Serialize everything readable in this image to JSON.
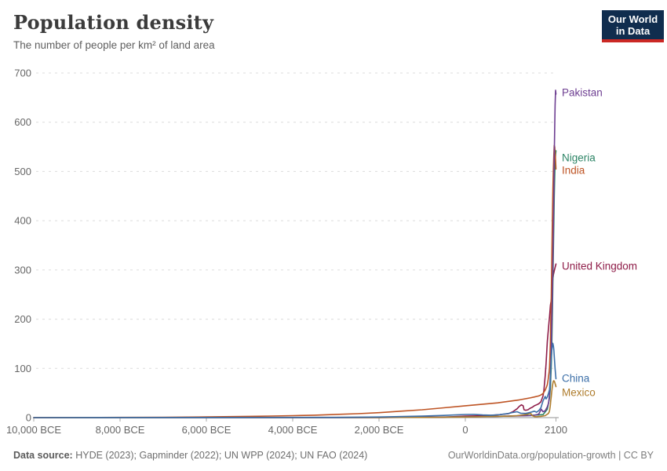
{
  "header": {
    "title": "Population density",
    "subtitle": "The number of people per km² of land area"
  },
  "logo": {
    "line1": "Our World",
    "line2": "in Data",
    "bg_color": "#102D4E",
    "accent_color": "#CB2824"
  },
  "chart_data": {
    "type": "line",
    "title": "Population density",
    "xlabel": "",
    "ylabel": "",
    "xlim": [
      -10000,
      2100
    ],
    "ylim": [
      0,
      700
    ],
    "grid": "dashed-horizontal",
    "legend_position": "labels-at-line-end",
    "yticks": [
      0,
      100,
      200,
      300,
      400,
      500,
      600,
      700
    ],
    "xticks": [
      {
        "year": -10000,
        "label": "10,000 BCE"
      },
      {
        "year": -8000,
        "label": "8,000 BCE"
      },
      {
        "year": -6000,
        "label": "6,000 BCE"
      },
      {
        "year": -4000,
        "label": "4,000 BCE"
      },
      {
        "year": -2000,
        "label": "2,000 BCE"
      },
      {
        "year": 0,
        "label": "0"
      },
      {
        "year": 2100,
        "label": "2100"
      }
    ],
    "series": [
      {
        "name": "United Kingdom",
        "color": "#8E1C48",
        "label_y": 339,
        "points": [
          [
            -10000,
            0.02
          ],
          [
            -2000,
            0.2
          ],
          [
            -500,
            1
          ],
          [
            0,
            3
          ],
          [
            500,
            4
          ],
          [
            800,
            6
          ],
          [
            1000,
            8
          ],
          [
            1100,
            12
          ],
          [
            1200,
            18
          ],
          [
            1250,
            23
          ],
          [
            1300,
            26
          ],
          [
            1340,
            24
          ],
          [
            1360,
            16
          ],
          [
            1400,
            15
          ],
          [
            1450,
            16
          ],
          [
            1500,
            19
          ],
          [
            1550,
            21
          ],
          [
            1600,
            24
          ],
          [
            1650,
            26
          ],
          [
            1700,
            28
          ],
          [
            1750,
            32
          ],
          [
            1800,
            44
          ],
          [
            1820,
            55
          ],
          [
            1850,
            85
          ],
          [
            1870,
            110
          ],
          [
            1900,
            155
          ],
          [
            1920,
            175
          ],
          [
            1940,
            195
          ],
          [
            1950,
            205
          ],
          [
            1970,
            228
          ],
          [
            1990,
            238
          ],
          [
            2000,
            244
          ],
          [
            2010,
            258
          ],
          [
            2020,
            276
          ],
          [
            2040,
            290
          ],
          [
            2060,
            298
          ],
          [
            2080,
            305
          ],
          [
            2100,
            312
          ]
        ]
      },
      {
        "name": "Nigeria",
        "color": "#2C8465",
        "label_y": 201,
        "points": [
          [
            -10000,
            0.01
          ],
          [
            -2000,
            0.3
          ],
          [
            0,
            1.5
          ],
          [
            1000,
            3
          ],
          [
            1500,
            4.5
          ],
          [
            1800,
            6
          ],
          [
            1900,
            17
          ],
          [
            1950,
            40
          ],
          [
            1970,
            61
          ],
          [
            1990,
            105
          ],
          [
            2000,
            133
          ],
          [
            2010,
            175
          ],
          [
            2020,
            228
          ],
          [
            2030,
            280
          ],
          [
            2040,
            340
          ],
          [
            2050,
            398
          ],
          [
            2060,
            448
          ],
          [
            2070,
            490
          ],
          [
            2080,
            518
          ],
          [
            2090,
            535
          ],
          [
            2100,
            542
          ]
        ]
      },
      {
        "name": "India",
        "color": "#BE5424",
        "label_y": 217,
        "points": [
          [
            -10000,
            0.2
          ],
          [
            -8000,
            0.5
          ],
          [
            -7000,
            0.8
          ],
          [
            -6000,
            1.5
          ],
          [
            -5000,
            2.5
          ],
          [
            -4500,
            3.2
          ],
          [
            -4000,
            4
          ],
          [
            -3500,
            5
          ],
          [
            -3000,
            6.5
          ],
          [
            -2500,
            8
          ],
          [
            -2000,
            10
          ],
          [
            -1500,
            13
          ],
          [
            -1000,
            16
          ],
          [
            -500,
            20
          ],
          [
            0,
            24
          ],
          [
            250,
            26
          ],
          [
            500,
            28
          ],
          [
            750,
            30
          ],
          [
            1000,
            33
          ],
          [
            1250,
            36
          ],
          [
            1500,
            40
          ],
          [
            1600,
            42
          ],
          [
            1700,
            44
          ],
          [
            1750,
            46
          ],
          [
            1800,
            49
          ],
          [
            1850,
            56
          ],
          [
            1880,
            62
          ],
          [
            1900,
            67
          ],
          [
            1920,
            78
          ],
          [
            1940,
            92
          ],
          [
            1950,
            102
          ],
          [
            1960,
            125
          ],
          [
            1970,
            155
          ],
          [
            1980,
            195
          ],
          [
            1990,
            245
          ],
          [
            2000,
            300
          ],
          [
            2010,
            355
          ],
          [
            2020,
            420
          ],
          [
            2030,
            465
          ],
          [
            2040,
            505
          ],
          [
            2050,
            535
          ],
          [
            2060,
            553
          ],
          [
            2070,
            550
          ],
          [
            2080,
            538
          ],
          [
            2090,
            522
          ],
          [
            2100,
            505
          ]
        ]
      },
      {
        "name": "Pakistan",
        "color": "#6D3E91",
        "label_y": 118,
        "points": [
          [
            -10000,
            0.02
          ],
          [
            -5000,
            0.1
          ],
          [
            -2000,
            0.5
          ],
          [
            0,
            1.5
          ],
          [
            500,
            2
          ],
          [
            1000,
            3
          ],
          [
            1500,
            4
          ],
          [
            1600,
            5
          ],
          [
            1700,
            7
          ],
          [
            1760,
            17
          ],
          [
            1800,
            12
          ],
          [
            1850,
            14
          ],
          [
            1900,
            22
          ],
          [
            1930,
            30
          ],
          [
            1950,
            47
          ],
          [
            1970,
            80
          ],
          [
            1990,
            140
          ],
          [
            2000,
            180
          ],
          [
            2010,
            220
          ],
          [
            2020,
            270
          ],
          [
            2030,
            320
          ],
          [
            2040,
            390
          ],
          [
            2050,
            460
          ],
          [
            2060,
            530
          ],
          [
            2070,
            590
          ],
          [
            2080,
            635
          ],
          [
            2090,
            665
          ],
          [
            2100,
            657
          ]
        ]
      },
      {
        "name": "Mexico",
        "color": "#AE7C2C",
        "label_y": 500,
        "points": [
          [
            -10000,
            0.01
          ],
          [
            -1000,
            0.5
          ],
          [
            0,
            1.2
          ],
          [
            500,
            2
          ],
          [
            1000,
            3
          ],
          [
            1200,
            4
          ],
          [
            1400,
            6
          ],
          [
            1500,
            8.5
          ],
          [
            1520,
            8
          ],
          [
            1550,
            4
          ],
          [
            1600,
            2
          ],
          [
            1650,
            1.8
          ],
          [
            1700,
            2.2
          ],
          [
            1750,
            2.6
          ],
          [
            1800,
            3.2
          ],
          [
            1850,
            4
          ],
          [
            1900,
            7
          ],
          [
            1920,
            8
          ],
          [
            1940,
            11
          ],
          [
            1950,
            14
          ],
          [
            1960,
            19
          ],
          [
            1970,
            26
          ],
          [
            1980,
            35
          ],
          [
            1990,
            43
          ],
          [
            2000,
            51
          ],
          [
            2010,
            58
          ],
          [
            2020,
            65
          ],
          [
            2030,
            70
          ],
          [
            2040,
            74
          ],
          [
            2050,
            75
          ],
          [
            2060,
            74
          ],
          [
            2070,
            72
          ],
          [
            2080,
            69
          ],
          [
            2090,
            66
          ],
          [
            2100,
            63
          ]
        ]
      },
      {
        "name": "China",
        "color": "#3C6FA8",
        "label_y": 482,
        "points": [
          [
            -10000,
            0.02
          ],
          [
            -3000,
            0.5
          ],
          [
            -2000,
            1.2
          ],
          [
            -1000,
            3
          ],
          [
            -500,
            4.5
          ],
          [
            0,
            6.3
          ],
          [
            200,
            6.5
          ],
          [
            400,
            5.5
          ],
          [
            600,
            5
          ],
          [
            800,
            6
          ],
          [
            1000,
            8.5
          ],
          [
            1100,
            10.5
          ],
          [
            1200,
            12
          ],
          [
            1280,
            9
          ],
          [
            1400,
            8.5
          ],
          [
            1500,
            10.5
          ],
          [
            1600,
            13
          ],
          [
            1650,
            11
          ],
          [
            1700,
            14
          ],
          [
            1750,
            20
          ],
          [
            1800,
            34
          ],
          [
            1850,
            43
          ],
          [
            1870,
            38
          ],
          [
            1900,
            42
          ],
          [
            1930,
            50
          ],
          [
            1950,
            57
          ],
          [
            1960,
            69
          ],
          [
            1970,
            86
          ],
          [
            1980,
            103
          ],
          [
            1990,
            120
          ],
          [
            2000,
            132
          ],
          [
            2010,
            141
          ],
          [
            2020,
            148
          ],
          [
            2028,
            151
          ],
          [
            2040,
            146
          ],
          [
            2050,
            138
          ],
          [
            2060,
            125
          ],
          [
            2070,
            111
          ],
          [
            2080,
            99
          ],
          [
            2090,
            88
          ],
          [
            2100,
            79
          ]
        ]
      }
    ],
    "axis_colors": {
      "gridline": "#dcdcdc",
      "axis_line": "#a8a8a8",
      "tick_label": "#666666"
    }
  },
  "footer": {
    "source_label": "Data source:",
    "source_text": " HYDE (2023); Gapminder (2022); UN WPP (2024); UN FAO (2024)",
    "credit": "OurWorldinData.org/population-growth | CC BY"
  }
}
